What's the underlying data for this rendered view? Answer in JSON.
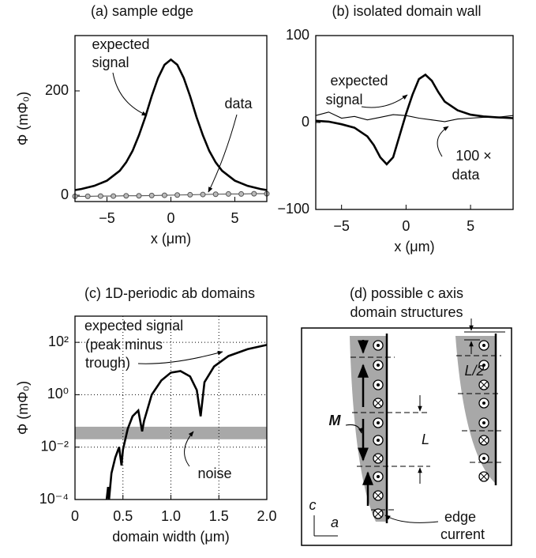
{
  "chart_data": [
    {
      "type": "line",
      "title": "(a) sample edge",
      "xlabel": "x (μm)",
      "ylabel": "Φ (mΦ₀)",
      "xlim": [
        -7.5,
        7.5
      ],
      "ylim": [
        -12,
        306
      ],
      "xticks": [
        {
          "value": -5,
          "label": "−5"
        },
        0,
        5
      ],
      "yticks": [
        0,
        200
      ],
      "grid": false,
      "log_y": false,
      "series": [
        {
          "color": "#000000",
          "x": [
            -7.5,
            -7,
            -6,
            -5,
            -4,
            -3.5,
            -3,
            -2.5,
            -2,
            -1.5,
            -1,
            -0.5,
            0,
            0.5,
            1,
            1.5,
            2,
            2.5,
            3,
            3.5,
            4,
            5,
            6,
            7,
            7.5
          ],
          "values": [
            10,
            12,
            18,
            28,
            47,
            63,
            85,
            115,
            150,
            190,
            225,
            250,
            260,
            250,
            225,
            190,
            150,
            115,
            85,
            63,
            47,
            28,
            18,
            12,
            10
          ]
        },
        {
          "color": "#555555",
          "marker": "o",
          "x": [
            -7.5,
            -6.5,
            -5.5,
            -4.5,
            -3.5,
            -2.5,
            -1.5,
            -0.5,
            0.5,
            1.5,
            2.5,
            3.5,
            4.5,
            5.5,
            6.5,
            7.5
          ],
          "values": [
            -2,
            -2,
            -1.5,
            -1.5,
            -1,
            -1,
            -0.5,
            0,
            0.5,
            1,
            1.5,
            2,
            2.5,
            2.5,
            3,
            3
          ]
        }
      ],
      "annotations": [
        "expected",
        "signal",
        "data"
      ]
    },
    {
      "type": "line",
      "title": "(b) isolated domain wall",
      "xlabel": "x (μm)",
      "xlim": [
        -7,
        8.3
      ],
      "ylim": [
        -100,
        100
      ],
      "xticks": [
        {
          "value": -5,
          "label": "−5"
        },
        0,
        5
      ],
      "yticks": [
        100,
        0,
        {
          "value": -100,
          "label": "−100"
        }
      ],
      "grid": false,
      "log_y": false,
      "series": [
        {
          "color": "#000000",
          "x": [
            -7,
            -6,
            -5,
            -4,
            -3,
            -2.5,
            -2,
            -1.5,
            -1,
            -0.5,
            0,
            0.5,
            1,
            1.5,
            2,
            2.5,
            3,
            4,
            5,
            6,
            7,
            8.3
          ],
          "values": [
            2,
            1,
            -2,
            -6,
            -16,
            -26,
            -40,
            -48,
            -40,
            -15,
            10,
            32,
            50,
            55,
            48,
            35,
            24,
            14,
            9,
            7,
            6,
            5
          ]
        },
        {
          "color": "#000000",
          "x": [
            -7,
            -6,
            -5,
            -4,
            -3,
            -2,
            -1,
            0,
            1,
            2,
            3,
            4,
            5,
            6,
            7,
            8.3
          ],
          "values": [
            8,
            12,
            5,
            7,
            3,
            6,
            9,
            8,
            5,
            3,
            1,
            4,
            5,
            6,
            6,
            8
          ]
        }
      ],
      "annotations": [
        "expected",
        "signal",
        "100 ×",
        "data"
      ]
    },
    {
      "type": "line",
      "title": "(c) 1D-periodic ab domains",
      "xlabel": "domain width (μm)",
      "ylabel": "Φ (mΦ₀)",
      "xlim": [
        0,
        2
      ],
      "ylim": [
        0.0001,
        1000
      ],
      "log_y": true,
      "grid": true,
      "xticks": [
        0,
        0.5,
        {
          "value": 1,
          "label": "1.0"
        },
        1.5,
        {
          "value": 2,
          "label": "2.0"
        }
      ],
      "yticks": [
        {
          "value": 0.0001,
          "label": "10⁻⁴"
        },
        {
          "value": 0.01,
          "label": "10⁻²"
        },
        {
          "value": 1,
          "label": "10⁰"
        },
        {
          "value": 100,
          "label": "10²"
        }
      ],
      "noise_band": [
        0.02,
        0.06
      ],
      "series": [
        {
          "color": "#000000",
          "x": [
            0.33,
            0.345,
            0.355,
            0.38,
            0.42,
            0.46,
            0.485,
            0.5,
            0.55,
            0.6,
            0.66,
            0.7,
            0.72,
            0.8,
            0.9,
            1.0,
            1.1,
            1.2,
            1.27,
            1.31,
            1.35,
            1.45,
            1.6,
            1.8,
            2.0
          ],
          "values": [
            0.0001,
            0.0003,
            0.0001,
            0.001,
            0.004,
            0.01,
            0.002,
            0.008,
            0.05,
            0.15,
            0.25,
            0.04,
            0.1,
            1,
            3.5,
            7,
            8,
            5,
            1.5,
            0.15,
            3,
            12,
            30,
            55,
            80
          ]
        }
      ],
      "annotations": [
        "expected signal",
        "(peak minus",
        "trough)",
        "noise"
      ]
    }
  ],
  "diagram": {
    "title": [
      "(d) possible c axis",
      "domain structures"
    ],
    "labels": {
      "M": "M",
      "L": "L",
      "L2": "L/2",
      "c": "c",
      "a": "a",
      "edge": "edge",
      "current": "current"
    }
  }
}
